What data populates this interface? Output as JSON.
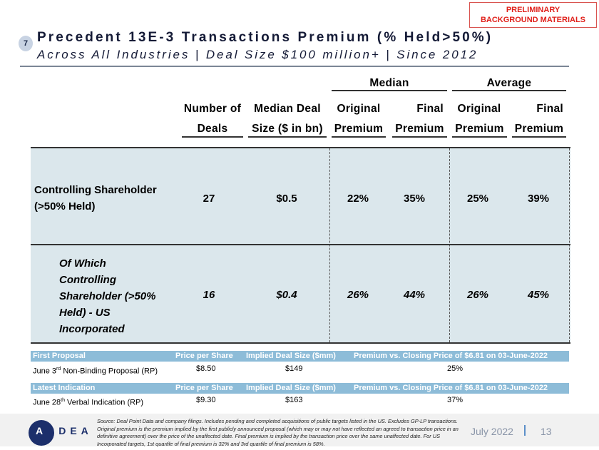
{
  "banner": {
    "line1": "PRELIMINARY",
    "line2": "BACKGROUND MATERIALS"
  },
  "section_number": "7",
  "title": "Precedent 13E-3 Transactions Premium (% Held>50%)",
  "subtitle": "Across All Industries | Deal Size $100 million+ | Since 2012",
  "groups": {
    "median": "Median",
    "average": "Average"
  },
  "columns": [
    {
      "l1": "Number of",
      "l2": "Deals"
    },
    {
      "l1": "Median Deal",
      "l2": "Size ($ in bn)"
    },
    {
      "l1": "Original",
      "l2": "Premium"
    },
    {
      "l1": "Final",
      "l2": "Premium"
    },
    {
      "l1": "Original",
      "l2": "Premium"
    },
    {
      "l1": "Final",
      "l2": "Premium"
    }
  ],
  "rows": [
    {
      "label_l1": "Controlling Shareholder",
      "label_l2": "(>50% Held)",
      "values": [
        "27",
        "$0.5",
        "22%",
        "35%",
        "25%",
        "39%"
      ]
    },
    {
      "label_lines": [
        "Of Which",
        "Controlling",
        "Shareholder (>50%",
        "Held) - US",
        "Incorporated"
      ],
      "values": [
        "16",
        "$0.4",
        "26%",
        "44%",
        "26%",
        "45%"
      ]
    }
  ],
  "proposals": [
    {
      "header": "First Proposal",
      "col1": "Price per Share",
      "col2": "Implied Deal Size ($mm)",
      "col3": "Premium vs. Closing Price of $6.81 on 03-June-2022",
      "label_pre": "June 3",
      "label_sup": "rd",
      "label_post": " Non-Binding Proposal (RP)",
      "price": "$8.50",
      "size": "$149",
      "premium": "25%"
    },
    {
      "header": "Latest Indication",
      "col1": "Price per Share",
      "col2": "Implied Deal Size ($mm)",
      "col3": "Premium vs. Closing Price of $6.81 on 03-June-2022",
      "label_pre": "June 28",
      "label_sup": "th",
      "label_post": " Verbal Indication (RP)",
      "price": "$9.30",
      "size": "$163",
      "premium": "37%"
    }
  ],
  "footer": {
    "logo": "ARDEA",
    "source": "Source: Deal Point Data and company filings. Includes pending and completed acquisitions of public targets listed in the US. Excludes GP-LP transactions. Original premium is the premium implied by the first publicly announced proposal (which may or may not have reflected an agreed to transaction price in an definitive agreement) over the price of the unaffected date. Final premium is implied by the transaction price over the same unaffected date. For US Incorporated targets, 1st quartile of final premium is 32% and 3rd quartile of final premium is 58%.",
    "date": "July 2022",
    "page": "13"
  }
}
